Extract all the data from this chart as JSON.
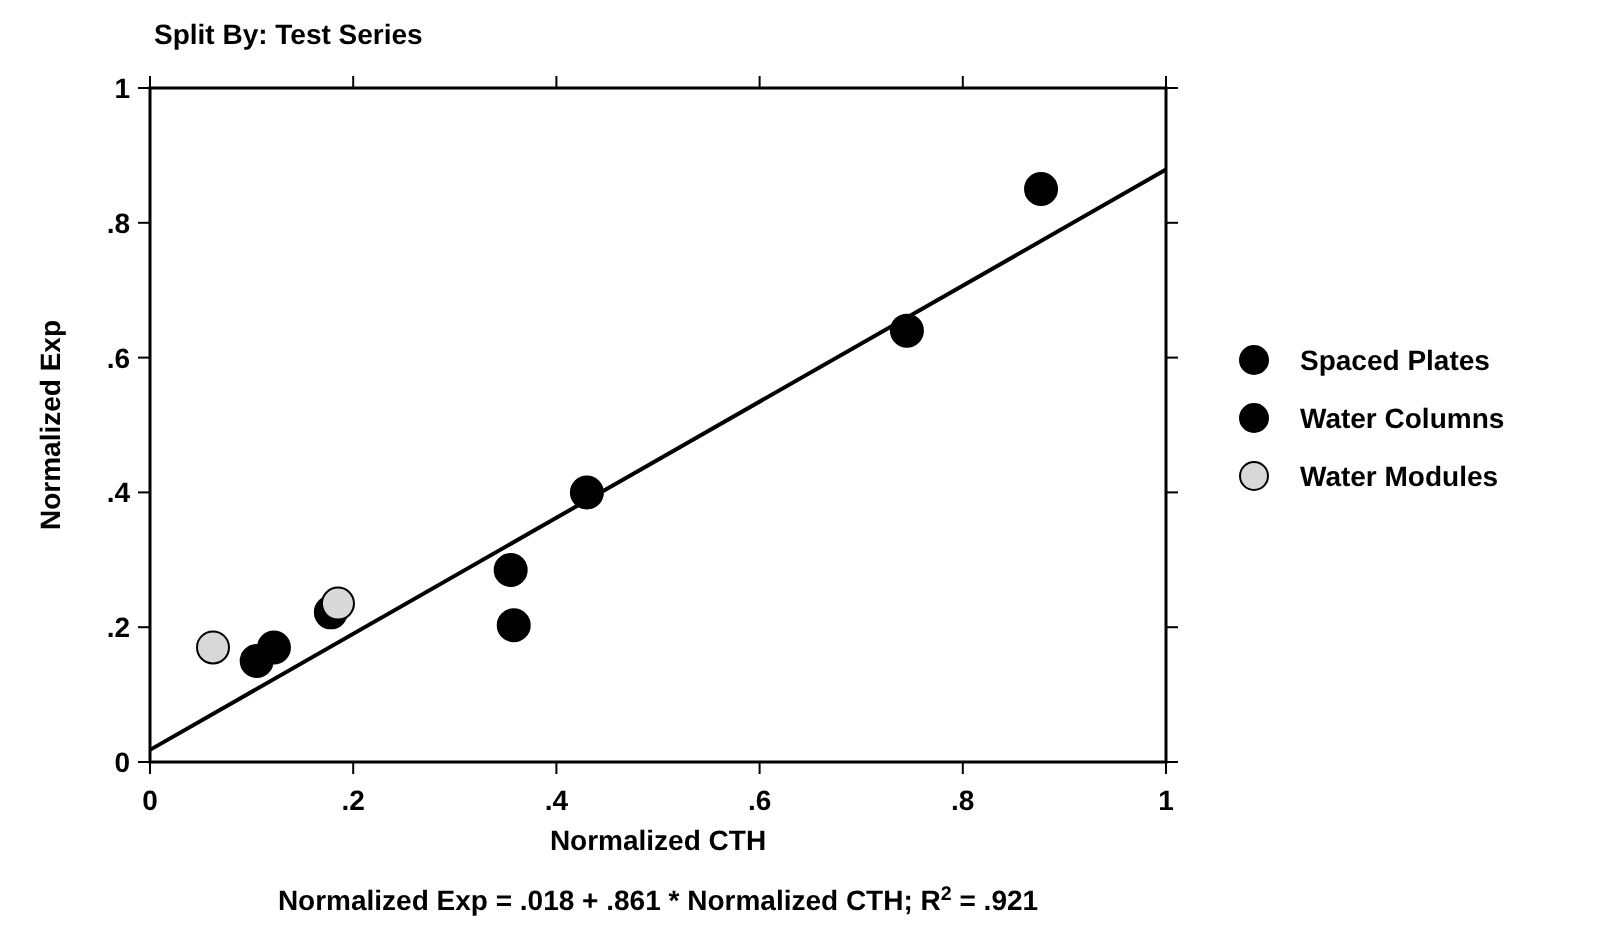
{
  "chart_data": {
    "type": "scatter",
    "title": "Split By: Test Series",
    "xlabel": "Normalized CTH",
    "ylabel": "Normalized Exp",
    "annotations": [
      "Normalized Exp = .018 + .861 * Normalized CTH; R$^{2}$ = .921"
    ],
    "xlim": [
      0,
      1
    ],
    "ylim": [
      0,
      1
    ],
    "xticks": [
      0,
      {
        "value": 0.2,
        "label": ".2"
      },
      {
        "value": 0.4,
        "label": ".4"
      },
      {
        "value": 0.6,
        "label": ".6"
      },
      {
        "value": 0.8,
        "label": ".8"
      },
      1
    ],
    "yticks": [
      0,
      {
        "value": 0.2,
        "label": ".2"
      },
      {
        "value": 0.4,
        "label": ".4"
      },
      {
        "value": 0.6,
        "label": ".6"
      },
      {
        "value": 0.8,
        "label": ".8"
      },
      1
    ],
    "grid": false,
    "legend": "right",
    "marker": "circle",
    "series": [
      {
        "name": "Spaced Plates",
        "color": "#000000",
        "x": [
          0.355,
          0.358,
          0.43,
          0.745,
          0.877
        ],
        "values": [
          0.285,
          0.203,
          0.4,
          0.64,
          0.85
        ]
      },
      {
        "name": "Water Columns",
        "color": "#000000",
        "x": [
          0.105,
          0.122,
          0.178
        ],
        "values": [
          0.15,
          0.17,
          0.222
        ]
      },
      {
        "name": "Water Modules",
        "color": "#d8d8d8",
        "x": [
          0.062,
          0.185
        ],
        "values": [
          0.17,
          0.235
        ]
      },
      {
        "type": "line",
        "color": "#000000",
        "line_style": "solid",
        "marker": "none",
        "x": [
          0,
          1
        ],
        "values": [
          0.018,
          0.879
        ]
      }
    ]
  }
}
